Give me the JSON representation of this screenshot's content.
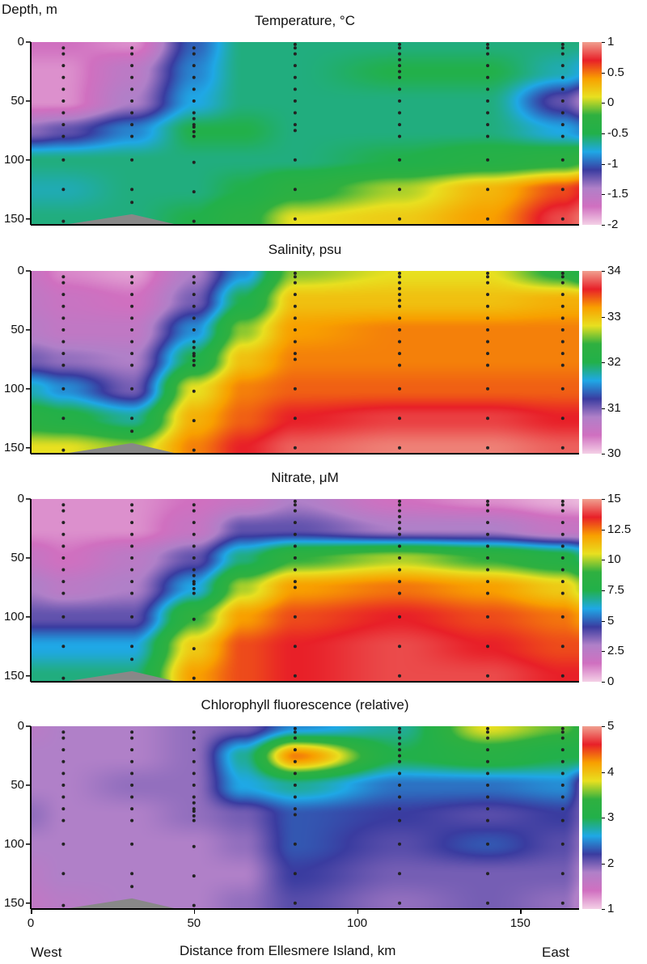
{
  "chart_data": {
    "type": "heatmap",
    "ylabel": "Depth, m",
    "xlabel": "Distance from Ellesmere Island, km",
    "x_left_label": "West",
    "x_right_label": "East",
    "xlim": [
      0,
      168
    ],
    "ylim": [
      155,
      0
    ],
    "x_ticks": [
      "0",
      "50",
      "100",
      "150"
    ],
    "x_tick_values": [
      0,
      50,
      100,
      150
    ],
    "y_ticks": [
      "0",
      "50",
      "100",
      "150"
    ],
    "y_tick_values": [
      0,
      50,
      100,
      150
    ],
    "grid_x": [
      0,
      10,
      31,
      50,
      65,
      81,
      113,
      140,
      163,
      170
    ],
    "grid_depth": [
      0,
      25,
      50,
      75,
      100,
      125,
      150
    ],
    "colormap": [
      "#f4d0e6",
      "#d070c0",
      "#b080c8",
      "#3a3ca0",
      "#1fa8e6",
      "#22b04a",
      "#2fb040",
      "#e8e020",
      "#f8a000",
      "#e82028",
      "#f0a090"
    ],
    "stations": [
      {
        "x": 10,
        "depths": [
          5,
          10,
          20,
          30,
          40,
          50,
          60,
          70,
          80,
          100,
          125,
          152
        ]
      },
      {
        "x": 31,
        "depths": [
          5,
          10,
          20,
          30,
          40,
          50,
          60,
          70,
          80,
          100,
          125,
          136
        ]
      },
      {
        "x": 50,
        "depths": [
          5,
          10,
          20,
          30,
          40,
          50,
          60,
          65,
          70,
          72,
          76,
          80,
          102,
          127,
          152
        ]
      },
      {
        "x": 81,
        "depths": [
          2,
          5,
          10,
          20,
          30,
          40,
          50,
          60,
          70,
          75,
          100,
          125,
          150
        ]
      },
      {
        "x": 113,
        "depths": [
          2,
          5,
          10,
          15,
          20,
          25,
          30,
          40,
          50,
          60,
          70,
          80,
          100,
          125,
          150
        ]
      },
      {
        "x": 140,
        "depths": [
          2,
          5,
          10,
          20,
          30,
          40,
          50,
          60,
          70,
          80,
          100,
          125,
          150
        ]
      },
      {
        "x": 163,
        "depths": [
          2,
          5,
          10,
          20,
          30,
          40,
          50,
          60,
          70,
          80,
          100,
          125,
          150
        ]
      }
    ],
    "bathymetry": {
      "x": [
        10,
        31,
        45
      ],
      "depth": [
        155,
        146,
        155
      ]
    },
    "panels": [
      {
        "title": "Temperature, °C",
        "range": [
          -2,
          1
        ],
        "colorbar_ticks": [
          "1",
          "0.5",
          "0",
          "-0.5",
          "-1",
          "-1.5",
          "-2"
        ],
        "colorbar_values": [
          1,
          0.5,
          0,
          -0.5,
          -1,
          -1.5,
          -2
        ],
        "values": [
          [
            -1.7,
            -1.7,
            -1.8,
            -1.0,
            -0.6,
            -0.6,
            -0.6,
            -0.6,
            -0.6,
            -0.6
          ],
          [
            -1.8,
            -1.8,
            -1.5,
            -0.9,
            -0.6,
            -0.6,
            -0.5,
            -0.5,
            -0.7,
            -0.8
          ],
          [
            -1.8,
            -1.8,
            -1.4,
            -0.8,
            -0.6,
            -0.6,
            -0.6,
            -0.6,
            -1.2,
            -1.4
          ],
          [
            -1.3,
            -1.2,
            -0.9,
            -0.5,
            -0.5,
            -0.6,
            -0.6,
            -0.6,
            -0.8,
            -0.9
          ],
          [
            -0.6,
            -0.6,
            -0.6,
            -0.6,
            -0.6,
            -0.6,
            -0.5,
            -0.4,
            -0.3,
            -0.2
          ],
          [
            -0.7,
            -0.7,
            -0.6,
            -0.6,
            -0.5,
            -0.3,
            0.0,
            0.3,
            0.6,
            0.7
          ],
          [
            -0.6,
            -0.6,
            -0.6,
            -0.5,
            -0.3,
            0.1,
            0.2,
            0.4,
            0.8,
            0.9
          ]
        ]
      },
      {
        "title": "Salinity, psu",
        "range": [
          30,
          34
        ],
        "colorbar_ticks": [
          "34",
          "33",
          "32",
          "31",
          "30"
        ],
        "colorbar_values": [
          34,
          33,
          32,
          31,
          30
        ],
        "values": [
          [
            30.5,
            30.3,
            30.2,
            30.8,
            31.5,
            32.6,
            32.8,
            32.8,
            32.3,
            32.0
          ],
          [
            30.6,
            30.5,
            30.4,
            31.0,
            32.0,
            33.0,
            33.0,
            33.0,
            33.1,
            33.1
          ],
          [
            30.7,
            30.6,
            30.6,
            31.5,
            32.6,
            33.2,
            33.3,
            33.3,
            33.3,
            33.3
          ],
          [
            31.0,
            30.9,
            30.8,
            32.0,
            33.0,
            33.3,
            33.3,
            33.3,
            33.3,
            33.3
          ],
          [
            31.7,
            31.5,
            31.0,
            32.8,
            33.3,
            33.4,
            33.4,
            33.4,
            33.4,
            33.4
          ],
          [
            32.2,
            32.1,
            31.8,
            33.1,
            33.4,
            33.6,
            33.7,
            33.7,
            33.6,
            33.6
          ],
          [
            32.8,
            32.8,
            32.6,
            33.3,
            33.6,
            33.8,
            33.9,
            33.9,
            33.8,
            33.8
          ]
        ]
      },
      {
        "title": "Nitrate, μM",
        "range": [
          0,
          15
        ],
        "colorbar_ticks": [
          "15",
          "12.5",
          "10",
          "7.5",
          "5",
          "2.5",
          "0"
        ],
        "colorbar_values": [
          15,
          12.5,
          10,
          7.5,
          5,
          2.5,
          0
        ],
        "values": [
          [
            1,
            1,
            1,
            1.5,
            2,
            3,
            1.5,
            1,
            0.5,
            0.3
          ],
          [
            1,
            1,
            1,
            2,
            4,
            4,
            3,
            3,
            2,
            2
          ],
          [
            2,
            1.5,
            2.5,
            4,
            7,
            9,
            10,
            9,
            8,
            7
          ],
          [
            3,
            2.5,
            3,
            6,
            10,
            12,
            12.5,
            12,
            11,
            10
          ],
          [
            4,
            4,
            4,
            9,
            12,
            13,
            13.5,
            13,
            12.5,
            12
          ],
          [
            6,
            6,
            6,
            11,
            13,
            13.5,
            14,
            13.5,
            13,
            13
          ],
          [
            7,
            7,
            7,
            12,
            13,
            13.5,
            14,
            14,
            13.5,
            13.5
          ]
        ]
      },
      {
        "title": "Chlorophyll fluorescence (relative)",
        "range": [
          1,
          5
        ],
        "colorbar_ticks": [
          "5",
          "4",
          "3",
          "2",
          "1"
        ],
        "colorbar_values": [
          5,
          4,
          3,
          2,
          1
        ],
        "values": [
          [
            1.7,
            1.8,
            1.8,
            1.9,
            2.0,
            2.5,
            2.8,
            3.8,
            3.5,
            3.3
          ],
          [
            1.8,
            1.8,
            1.8,
            1.9,
            2.8,
            4.3,
            3.0,
            3.2,
            3.0,
            3.0
          ],
          [
            1.8,
            1.8,
            1.9,
            1.9,
            2.6,
            2.8,
            2.4,
            2.4,
            2.5,
            2.0
          ],
          [
            1.9,
            1.8,
            1.8,
            1.9,
            2.0,
            2.3,
            2.2,
            2.1,
            2.2,
            2.0
          ],
          [
            1.8,
            1.8,
            1.8,
            1.8,
            1.9,
            2.3,
            2.1,
            2.3,
            2.1,
            1.9
          ],
          [
            1.7,
            1.8,
            1.8,
            1.8,
            1.8,
            2.2,
            2.0,
            2.0,
            2.0,
            1.8
          ],
          [
            1.6,
            1.7,
            1.8,
            1.8,
            1.9,
            2.1,
            1.9,
            2.0,
            1.9,
            1.7
          ]
        ]
      }
    ]
  }
}
